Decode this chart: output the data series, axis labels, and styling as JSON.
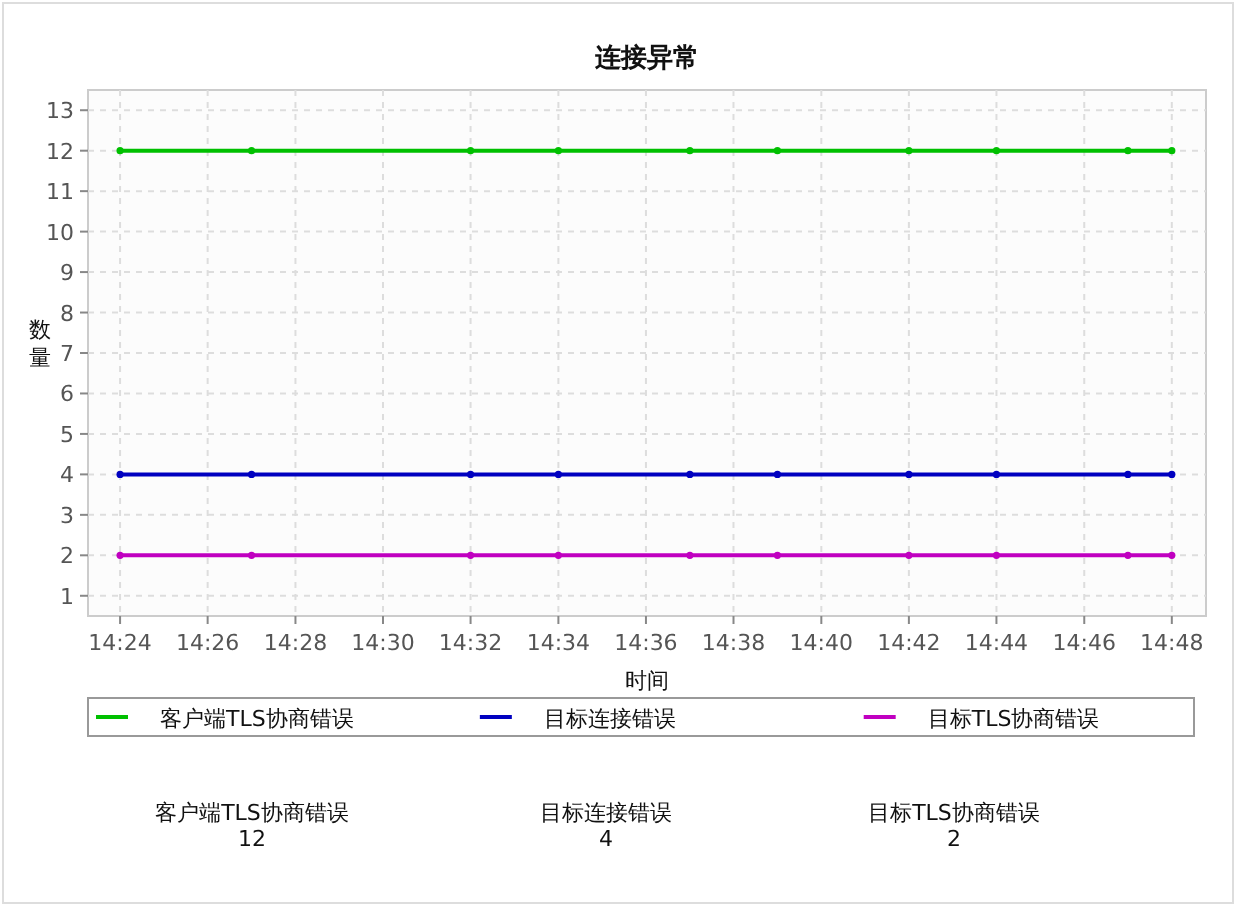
{
  "chart_data": {
    "type": "line",
    "title": "连接异常",
    "xlabel": "时间",
    "ylabel": "数量",
    "x": [
      14.4,
      14.45,
      14.5333,
      14.5667,
      14.6167,
      14.65,
      14.7,
      14.7333,
      14.7833,
      14.8
    ],
    "series": [
      {
        "name": "客户端TLS协商错误",
        "color": "#00c000",
        "values": [
          12,
          12,
          12,
          12,
          12,
          12,
          12,
          12,
          12,
          12
        ]
      },
      {
        "name": "目标连接错误",
        "color": "#0000c0",
        "values": [
          4,
          4,
          4,
          4,
          4,
          4,
          4,
          4,
          4,
          4
        ]
      },
      {
        "name": "目标TLS协商错误",
        "color": "#c000c0",
        "values": [
          2,
          2,
          2,
          2,
          2,
          2,
          2,
          2,
          2,
          2
        ]
      }
    ],
    "xlim": [
      14.3878,
      14.813
    ],
    "ylim": [
      0.5,
      13.5
    ],
    "xticks": [
      {
        "value": 14.4,
        "label": "14:24"
      },
      {
        "value": 14.4333,
        "label": "14:26"
      },
      {
        "value": 14.4667,
        "label": "14:28"
      },
      {
        "value": 14.5,
        "label": "14:30"
      },
      {
        "value": 14.5333,
        "label": "14:32"
      },
      {
        "value": 14.5667,
        "label": "14:34"
      },
      {
        "value": 14.6,
        "label": "14:36"
      },
      {
        "value": 14.6333,
        "label": "14:38"
      },
      {
        "value": 14.6667,
        "label": "14:40"
      },
      {
        "value": 14.7,
        "label": "14:42"
      },
      {
        "value": 14.7333,
        "label": "14:44"
      },
      {
        "value": 14.7667,
        "label": "14:46"
      },
      {
        "value": 14.8,
        "label": "14:48"
      }
    ],
    "yticks": [
      1,
      2,
      3,
      4,
      5,
      6,
      7,
      8,
      9,
      10,
      11,
      12,
      13
    ],
    "grid": true,
    "legend": "bottom",
    "marker": "circle",
    "line_style": "solid",
    "annotations": [
      "客户端TLS协商错误",
      "12",
      "目标连接错误",
      "4",
      "目标TLS协商错误",
      "2"
    ]
  }
}
